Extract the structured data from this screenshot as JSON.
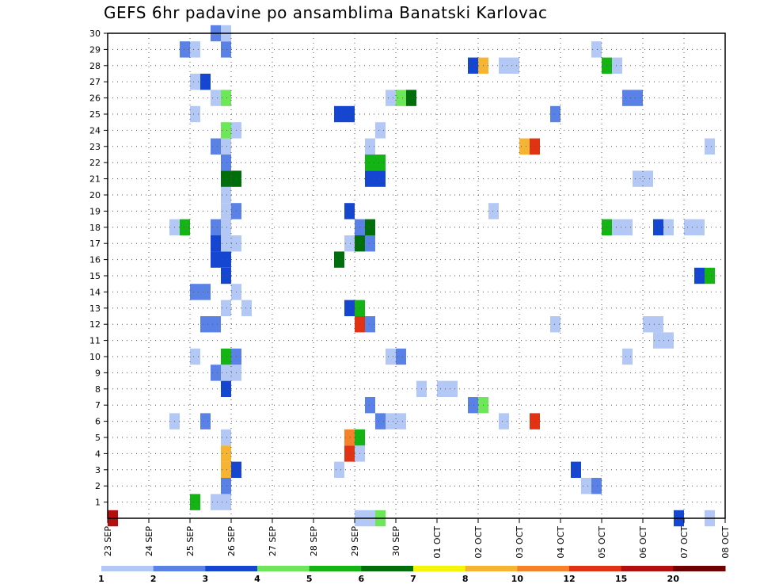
{
  "title": "GEFS 6hr padavine po ansamblima Banatski Karlovac",
  "chart_data": {
    "type": "heatmap",
    "title": "GEFS 6hr padavine po ansamblima Banatski Karlovac",
    "y_tick_labels": [
      "1",
      "2",
      "3",
      "4",
      "5",
      "6",
      "7",
      "8",
      "9",
      "10",
      "11",
      "12",
      "13",
      "14",
      "15",
      "16",
      "17",
      "18",
      "19",
      "20",
      "21",
      "22",
      "23",
      "24",
      "25",
      "26",
      "27",
      "28",
      "29",
      "30"
    ],
    "x_tick_labels": [
      "23 SEP",
      "24 SEP",
      "25 SEP",
      "26 SEP",
      "27 SEP",
      "28 SEP",
      "29 SEP",
      "30 SEP",
      "01 OCT",
      "02 OCT",
      "03 OCT",
      "04 OCT",
      "05 OCT",
      "06 OCT",
      "07 OCT",
      "08 OCT"
    ],
    "x_domain": [
      0,
      15
    ],
    "x_unit": "days since 23 SEP 00Z",
    "y_domain": [
      0,
      30
    ],
    "grid": true,
    "colorbar": {
      "levels": [
        1,
        2,
        3,
        4,
        5,
        6,
        7,
        8,
        10,
        12,
        15,
        20
      ],
      "labels": [
        "1",
        "2",
        "3",
        "4",
        "5",
        "6",
        "7",
        "8",
        "10",
        "12",
        "15",
        "20"
      ],
      "colors": [
        "#b4c8f5",
        "#5a82e6",
        "#1446d2",
        "#6ee65a",
        "#14b414",
        "#006e0a",
        "#f5f50a",
        "#f5b432",
        "#f58228",
        "#e13214",
        "#b40f0f",
        "#6e0000"
      ]
    },
    "cells": [
      {
        "day": 0.0,
        "member": 0,
        "value": 15
      },
      {
        "day": 2.0,
        "member": 1,
        "value": 5.5
      },
      {
        "day": 2.5,
        "member": 1,
        "value": 1.5
      },
      {
        "day": 2.75,
        "member": 1,
        "value": 1.5
      },
      {
        "day": 2.75,
        "member": 2,
        "value": 2.5
      },
      {
        "day": 2.75,
        "member": 3,
        "value": 8.5
      },
      {
        "day": 3.0,
        "member": 3,
        "value": 3.5
      },
      {
        "day": 2.75,
        "member": 4,
        "value": 9
      },
      {
        "day": 2.75,
        "member": 5,
        "value": 1.5
      },
      {
        "day": 1.5,
        "member": 6,
        "value": 1.5
      },
      {
        "day": 2.25,
        "member": 6,
        "value": 2.5
      },
      {
        "day": 2.75,
        "member": 8,
        "value": 3.5
      },
      {
        "day": 2.5,
        "member": 9,
        "value": 2.5
      },
      {
        "day": 2.75,
        "member": 9,
        "value": 1.5
      },
      {
        "day": 3.0,
        "member": 9,
        "value": 1.5
      },
      {
        "day": 2.0,
        "member": 10,
        "value": 1.5
      },
      {
        "day": 2.75,
        "member": 10,
        "value": 5.5
      },
      {
        "day": 3.0,
        "member": 10,
        "value": 2.5
      },
      {
        "day": 2.25,
        "member": 12,
        "value": 2.5
      },
      {
        "day": 2.5,
        "member": 12,
        "value": 2.5
      },
      {
        "day": 2.75,
        "member": 13,
        "value": 1.5
      },
      {
        "day": 3.25,
        "member": 13,
        "value": 1.5
      },
      {
        "day": 3.0,
        "member": 14,
        "value": 1.5
      },
      {
        "day": 2.0,
        "member": 14,
        "value": 2.5
      },
      {
        "day": 2.25,
        "member": 14,
        "value": 2.5
      },
      {
        "day": 2.75,
        "member": 15,
        "value": 3.5
      },
      {
        "day": 2.75,
        "member": 16,
        "value": 3.5
      },
      {
        "day": 2.5,
        "member": 16,
        "value": 3.5
      },
      {
        "day": 2.5,
        "member": 17,
        "value": 3.5
      },
      {
        "day": 2.75,
        "member": 17,
        "value": 1.5
      },
      {
        "day": 3.0,
        "member": 17,
        "value": 1.5
      },
      {
        "day": 1.5,
        "member": 18,
        "value": 1.5
      },
      {
        "day": 1.75,
        "member": 18,
        "value": 5.5
      },
      {
        "day": 2.5,
        "member": 18,
        "value": 2.5
      },
      {
        "day": 2.75,
        "member": 18,
        "value": 1.5
      },
      {
        "day": 2.75,
        "member": 19,
        "value": 1.5
      },
      {
        "day": 3.0,
        "member": 19,
        "value": 2.5
      },
      {
        "day": 2.75,
        "member": 20,
        "value": 1.5
      },
      {
        "day": 2.75,
        "member": 21,
        "value": 6.5
      },
      {
        "day": 3.0,
        "member": 21,
        "value": 6.5
      },
      {
        "day": 2.75,
        "member": 22,
        "value": 2.5
      },
      {
        "day": 2.5,
        "member": 23,
        "value": 2.5
      },
      {
        "day": 2.75,
        "member": 23,
        "value": 1.5
      },
      {
        "day": 2.75,
        "member": 24,
        "value": 4.5
      },
      {
        "day": 3.0,
        "member": 24,
        "value": 1.5
      },
      {
        "day": 2.0,
        "member": 25,
        "value": 1.5
      },
      {
        "day": 2.5,
        "member": 26,
        "value": 1.5
      },
      {
        "day": 2.75,
        "member": 26,
        "value": 4.5
      },
      {
        "day": 2.0,
        "member": 27,
        "value": 1.5
      },
      {
        "day": 2.25,
        "member": 27,
        "value": 3.5
      },
      {
        "day": 1.75,
        "member": 29,
        "value": 2.5
      },
      {
        "day": 2.0,
        "member": 29,
        "value": 1.5
      },
      {
        "day": 2.75,
        "member": 29,
        "value": 2.5
      },
      {
        "day": 2.5,
        "member": 30,
        "value": 2.5
      },
      {
        "day": 2.75,
        "member": 30,
        "value": 1.5
      },
      {
        "day": 5.5,
        "member": 3,
        "value": 1.5
      },
      {
        "day": 5.75,
        "member": 4,
        "value": 13
      },
      {
        "day": 6.0,
        "member": 4,
        "value": 1.5
      },
      {
        "day": 5.75,
        "member": 5,
        "value": 11
      },
      {
        "day": 6.0,
        "member": 5,
        "value": 5.5
      },
      {
        "day": 6.5,
        "member": 6,
        "value": 2.5
      },
      {
        "day": 6.75,
        "member": 6,
        "value": 1.5
      },
      {
        "day": 7.0,
        "member": 6,
        "value": 1.5
      },
      {
        "day": 6.25,
        "member": 7,
        "value": 2.5
      },
      {
        "day": 6.75,
        "member": 10,
        "value": 1.5
      },
      {
        "day": 7.0,
        "member": 10,
        "value": 2.5
      },
      {
        "day": 6.0,
        "member": 12,
        "value": 13
      },
      {
        "day": 6.25,
        "member": 12,
        "value": 2.5
      },
      {
        "day": 5.75,
        "member": 13,
        "value": 3.5
      },
      {
        "day": 6.0,
        "member": 13,
        "value": 5.5
      },
      {
        "day": 5.5,
        "member": 16,
        "value": 6.5
      },
      {
        "day": 5.75,
        "member": 17,
        "value": 1.5
      },
      {
        "day": 6.0,
        "member": 17,
        "value": 6.5
      },
      {
        "day": 6.25,
        "member": 17,
        "value": 2.5
      },
      {
        "day": 6.0,
        "member": 18,
        "value": 2.5
      },
      {
        "day": 6.25,
        "member": 18,
        "value": 6.5
      },
      {
        "day": 5.75,
        "member": 19,
        "value": 3.5
      },
      {
        "day": 6.25,
        "member": 21,
        "value": 3.5
      },
      {
        "day": 6.5,
        "member": 21,
        "value": 3.5
      },
      {
        "day": 6.25,
        "member": 22,
        "value": 5.5
      },
      {
        "day": 6.5,
        "member": 22,
        "value": 5.5
      },
      {
        "day": 6.25,
        "member": 23,
        "value": 1.5
      },
      {
        "day": 5.5,
        "member": 25,
        "value": 3.5
      },
      {
        "day": 5.75,
        "member": 25,
        "value": 3.5
      },
      {
        "day": 6.5,
        "member": 24,
        "value": 1.5
      },
      {
        "day": 6.75,
        "member": 26,
        "value": 1.5
      },
      {
        "day": 7.0,
        "member": 26,
        "value": 4.5
      },
      {
        "day": 7.25,
        "member": 26,
        "value": 6.5
      },
      {
        "day": 6.0,
        "member": 0,
        "value": 1.5
      },
      {
        "day": 6.25,
        "member": 0,
        "value": 1.5
      },
      {
        "day": 6.5,
        "member": 0,
        "value": 4.5
      },
      {
        "day": 7.5,
        "member": 8,
        "value": 1.5
      },
      {
        "day": 8.0,
        "member": 8,
        "value": 1.5
      },
      {
        "day": 8.25,
        "member": 8,
        "value": 1.5
      },
      {
        "day": 8.75,
        "member": 7,
        "value": 2.5
      },
      {
        "day": 9.0,
        "member": 7,
        "value": 4.5
      },
      {
        "day": 9.5,
        "member": 6,
        "value": 1.5
      },
      {
        "day": 10.25,
        "member": 6,
        "value": 13
      },
      {
        "day": 9.25,
        "member": 19,
        "value": 1.5
      },
      {
        "day": 8.75,
        "member": 28,
        "value": 3.5
      },
      {
        "day": 9.0,
        "member": 28,
        "value": 9
      },
      {
        "day": 9.5,
        "member": 28,
        "value": 1.5
      },
      {
        "day": 9.75,
        "member": 28,
        "value": 1.5
      },
      {
        "day": 10.0,
        "member": 23,
        "value": 9
      },
      {
        "day": 10.25,
        "member": 23,
        "value": 13
      },
      {
        "day": 10.75,
        "member": 12,
        "value": 1.5
      },
      {
        "day": 10.75,
        "member": 25,
        "value": 2.5
      },
      {
        "day": 11.25,
        "member": 3,
        "value": 3.5
      },
      {
        "day": 11.5,
        "member": 2,
        "value": 1.5
      },
      {
        "day": 11.75,
        "member": 2,
        "value": 2.5
      },
      {
        "day": 12.0,
        "member": 18,
        "value": 5.5
      },
      {
        "day": 12.25,
        "member": 18,
        "value": 1.5
      },
      {
        "day": 12.5,
        "member": 18,
        "value": 1.5
      },
      {
        "day": 13.25,
        "member": 18,
        "value": 3.5
      },
      {
        "day": 13.5,
        "member": 18,
        "value": 1.5
      },
      {
        "day": 14.0,
        "member": 18,
        "value": 1.5
      },
      {
        "day": 14.25,
        "member": 18,
        "value": 1.5
      },
      {
        "day": 12.5,
        "member": 10,
        "value": 1.5
      },
      {
        "day": 13.0,
        "member": 12,
        "value": 1.5
      },
      {
        "day": 13.25,
        "member": 12,
        "value": 1.5
      },
      {
        "day": 13.25,
        "member": 11,
        "value": 1.5
      },
      {
        "day": 13.5,
        "member": 11,
        "value": 1.5
      },
      {
        "day": 12.5,
        "member": 26,
        "value": 2.5
      },
      {
        "day": 12.75,
        "member": 26,
        "value": 2.5
      },
      {
        "day": 12.75,
        "member": 21,
        "value": 1.5
      },
      {
        "day": 13.0,
        "member": 21,
        "value": 1.5
      },
      {
        "day": 11.75,
        "member": 29,
        "value": 1.5
      },
      {
        "day": 12.0,
        "member": 28,
        "value": 5.5
      },
      {
        "day": 12.25,
        "member": 28,
        "value": 1.5
      },
      {
        "day": 14.5,
        "member": 23,
        "value": 1.5
      },
      {
        "day": 14.25,
        "member": 15,
        "value": 3.5
      },
      {
        "day": 14.5,
        "member": 15,
        "value": 5.5
      },
      {
        "day": 13.75,
        "member": 0,
        "value": 3.5
      },
      {
        "day": 14.5,
        "member": 0,
        "value": 1.5
      }
    ]
  }
}
